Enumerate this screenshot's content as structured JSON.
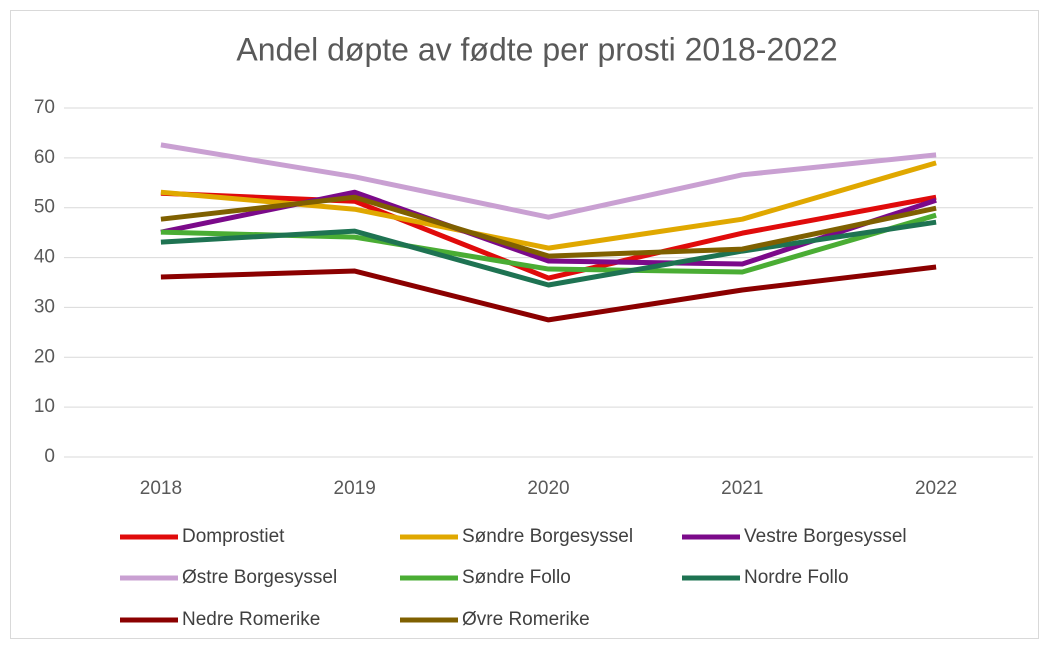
{
  "chart_data": {
    "type": "line",
    "title": "Andel døpte av fødte per prosti 2018-2022",
    "categories": [
      "2018",
      "2019",
      "2020",
      "2021",
      "2022"
    ],
    "ylim": [
      0,
      70
    ],
    "yticks": [
      0,
      10,
      20,
      30,
      40,
      50,
      60,
      70
    ],
    "grid": true,
    "series": [
      {
        "name": "Domprostiet",
        "color": "#e00b0b",
        "values": [
          52.9,
          51.3,
          35.9,
          44.9,
          52.1
        ]
      },
      {
        "name": "Søndre Borgesyssel",
        "color": "#e0a800",
        "values": [
          53.1,
          49.7,
          41.9,
          47.7,
          59.0
        ]
      },
      {
        "name": "Vestre Borgesyssel",
        "color": "#7b0a8a",
        "values": [
          45.1,
          53.1,
          39.3,
          38.7,
          51.5
        ]
      },
      {
        "name": "Østre Borgesyssel",
        "color": "#c9a0d2",
        "values": [
          62.6,
          56.2,
          48.1,
          56.6,
          60.6
        ]
      },
      {
        "name": "Søndre Follo",
        "color": "#4aad34",
        "values": [
          45.1,
          44.1,
          37.7,
          37.1,
          48.5
        ]
      },
      {
        "name": "Nordre Follo",
        "color": "#1e7352",
        "values": [
          43.1,
          45.3,
          34.5,
          41.3,
          47.1
        ]
      },
      {
        "name": "Nedre Romerike",
        "color": "#8b0000",
        "values": [
          36.1,
          37.3,
          27.5,
          33.5,
          38.1
        ]
      },
      {
        "name": "Øvre Romerike",
        "color": "#7f6000",
        "values": [
          47.7,
          52.1,
          40.3,
          41.7,
          49.9
        ]
      }
    ]
  }
}
